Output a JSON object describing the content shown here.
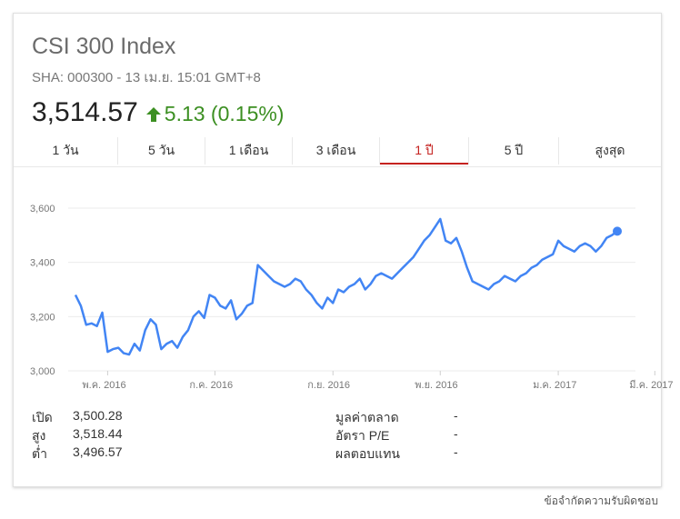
{
  "header": {
    "title": "CSI 300 Index",
    "subtitle": "SHA: 000300 - 13 เม.ย. 15:01 GMT+8",
    "price": "3,514.57",
    "change": "5.13 (0.15%)",
    "change_color": "#3c8f22",
    "change_icon": "up-arrow-icon"
  },
  "tabs": [
    {
      "label": "1 วัน"
    },
    {
      "label": "5 วัน"
    },
    {
      "label": "1 เดือน"
    },
    {
      "label": "3 เดือน"
    },
    {
      "label": "1 ปี"
    },
    {
      "label": "5 ปี"
    },
    {
      "label": "สูงสุด"
    }
  ],
  "active_tab": "1 ปี",
  "chart_data": {
    "type": "line",
    "color": "#4285f4",
    "ylim": [
      3000,
      3650
    ],
    "y_ticks": [
      3000,
      3200,
      3400,
      3600
    ],
    "y_tick_labels": [
      "3,000",
      "3,200",
      "3,400",
      "3,600"
    ],
    "x_tick_labels": [
      "พ.ค. 2016",
      "ก.ค. 2016",
      "ก.ย. 2016",
      "พ.ย. 2016",
      "ม.ค. 2017",
      "มี.ค. 2017"
    ],
    "x_tick_index": [
      6,
      26,
      48,
      68,
      90,
      108
    ],
    "grid": true,
    "last_point_marker": true,
    "values": [
      3280,
      3240,
      3170,
      3175,
      3165,
      3215,
      3070,
      3080,
      3085,
      3065,
      3060,
      3100,
      3075,
      3150,
      3190,
      3170,
      3080,
      3100,
      3110,
      3085,
      3125,
      3150,
      3200,
      3220,
      3195,
      3280,
      3270,
      3240,
      3230,
      3260,
      3190,
      3210,
      3240,
      3250,
      3390,
      3370,
      3350,
      3330,
      3320,
      3310,
      3320,
      3340,
      3330,
      3300,
      3280,
      3250,
      3230,
      3270,
      3250,
      3300,
      3290,
      3310,
      3320,
      3340,
      3300,
      3320,
      3350,
      3360,
      3350,
      3340,
      3360,
      3380,
      3400,
      3420,
      3450,
      3480,
      3500,
      3530,
      3560,
      3480,
      3470,
      3490,
      3440,
      3380,
      3330,
      3320,
      3310,
      3300,
      3320,
      3330,
      3350,
      3340,
      3330,
      3350,
      3360,
      3380,
      3390,
      3410,
      3420,
      3430,
      3480,
      3460,
      3450,
      3440,
      3460,
      3470,
      3460,
      3440,
      3460,
      3490,
      3500,
      3515
    ],
    "y_label_positions": [],
    "title": ""
  },
  "stats": {
    "open_label": "เปิด",
    "open_value": "3,500.28",
    "high_label": "สูง",
    "high_value": "3,518.44",
    "low_label": "ต่ำ",
    "low_value": "3,496.57",
    "mcap_label": "มูลค่าตลาด",
    "mcap_value": "-",
    "pe_label": "อัตรา P/E",
    "pe_value": "-",
    "yield_label": "ผลตอบแทน",
    "yield_value": "-"
  },
  "footer": {
    "disclaimer": "ข้อจำกัดความรับผิดชอบ"
  }
}
